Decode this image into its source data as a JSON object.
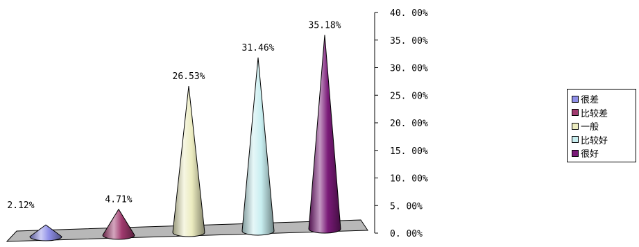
{
  "chart_data": {
    "type": "bar",
    "shape": "cone-3d",
    "categories": [
      "很差",
      "比较差",
      "一般",
      "比较好",
      "很好"
    ],
    "values": [
      2.12,
      4.71,
      26.53,
      31.46,
      35.18
    ],
    "data_labels": [
      "2.12%",
      "4.71%",
      "26.53%",
      "31.46%",
      "35.18%"
    ],
    "colors": [
      "#8f8fe8",
      "#a03a6e",
      "#ececc0",
      "#c8eef0",
      "#7a1a78"
    ],
    "y_axis": {
      "position": "right",
      "ylim": [
        0,
        40
      ],
      "ticks": [
        0,
        5,
        10,
        15,
        20,
        25,
        30,
        35,
        40
      ],
      "tick_labels": [
        "0. 00%",
        "5. 00%",
        "10. 00%",
        "15. 00%",
        "20. 00%",
        "25. 00%",
        "30. 00%",
        "35. 00%",
        "40. 00%"
      ]
    },
    "legend": {
      "placement": "right",
      "entries": [
        "很差",
        "比较差",
        "一般",
        "比较好",
        "很好"
      ]
    },
    "grid": false,
    "title": "",
    "xlabel": "",
    "ylabel": ""
  }
}
